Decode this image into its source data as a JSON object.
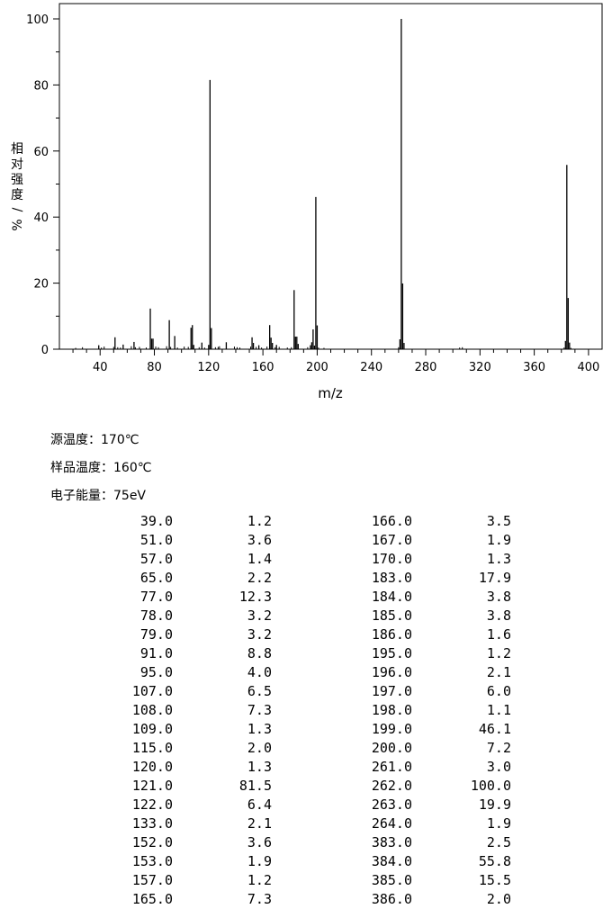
{
  "chart_data": {
    "type": "bar",
    "xlabel": "m/z",
    "ylabel": "相对强度/%",
    "xlim": [
      10,
      410
    ],
    "ylim": [
      0,
      100
    ],
    "xticks": [
      40,
      80,
      120,
      160,
      200,
      240,
      280,
      320,
      360,
      400
    ],
    "yticks": [
      0,
      20,
      40,
      60,
      80,
      100
    ],
    "peaks": [
      [
        39,
        1.2
      ],
      [
        51,
        3.6
      ],
      [
        57,
        1.4
      ],
      [
        65,
        2.2
      ],
      [
        77,
        12.3
      ],
      [
        78,
        3.2
      ],
      [
        79,
        3.2
      ],
      [
        91,
        8.8
      ],
      [
        95,
        4.0
      ],
      [
        107,
        6.5
      ],
      [
        108,
        7.3
      ],
      [
        109,
        1.3
      ],
      [
        115,
        2.0
      ],
      [
        120,
        1.3
      ],
      [
        121,
        81.5
      ],
      [
        122,
        6.4
      ],
      [
        133,
        2.1
      ],
      [
        152,
        3.6
      ],
      [
        153,
        1.9
      ],
      [
        157,
        1.2
      ],
      [
        165,
        7.3
      ],
      [
        166,
        3.5
      ],
      [
        167,
        1.9
      ],
      [
        170,
        1.3
      ],
      [
        183,
        17.9
      ],
      [
        184,
        3.8
      ],
      [
        185,
        3.8
      ],
      [
        186,
        1.6
      ],
      [
        195,
        1.2
      ],
      [
        196,
        2.1
      ],
      [
        197,
        6.0
      ],
      [
        198,
        1.1
      ],
      [
        199,
        46.1
      ],
      [
        200,
        7.2
      ],
      [
        261,
        3.0
      ],
      [
        262,
        100.0
      ],
      [
        263,
        19.9
      ],
      [
        264,
        1.9
      ],
      [
        383,
        2.5
      ],
      [
        384,
        55.8
      ],
      [
        385,
        15.5
      ],
      [
        386,
        2.0
      ]
    ],
    "minor_peaks": [
      [
        22,
        0.4
      ],
      [
        27,
        0.6
      ],
      [
        41,
        0.5
      ],
      [
        43,
        0.8
      ],
      [
        50,
        0.7
      ],
      [
        53,
        0.6
      ],
      [
        55,
        0.5
      ],
      [
        63,
        0.9
      ],
      [
        66,
        0.6
      ],
      [
        69,
        0.7
      ],
      [
        74,
        0.5
      ],
      [
        81,
        0.8
      ],
      [
        83,
        0.6
      ],
      [
        89,
        0.9
      ],
      [
        92,
        0.7
      ],
      [
        97,
        0.5
      ],
      [
        102,
        0.8
      ],
      [
        105,
        0.7
      ],
      [
        113,
        0.6
      ],
      [
        117,
        0.5
      ],
      [
        125,
        0.6
      ],
      [
        127,
        0.7
      ],
      [
        128,
        0.9
      ],
      [
        139,
        0.8
      ],
      [
        141,
        0.6
      ],
      [
        143,
        0.5
      ],
      [
        151,
        0.8
      ],
      [
        155,
        0.7
      ],
      [
        159,
        0.5
      ],
      [
        163,
        0.8
      ],
      [
        169,
        0.6
      ],
      [
        172,
        0.7
      ],
      [
        178,
        0.5
      ],
      [
        181,
        0.6
      ],
      [
        193,
        0.6
      ],
      [
        201,
        0.5
      ],
      [
        205,
        0.4
      ],
      [
        260,
        0.6
      ],
      [
        305,
        0.5
      ],
      [
        307,
        0.6
      ],
      [
        382,
        0.5
      ],
      [
        387,
        0.4
      ]
    ]
  },
  "conditions": [
    {
      "label": "源温度：",
      "value": "170℃"
    },
    {
      "label": "样品温度：",
      "value": "160℃"
    },
    {
      "label": "电子能量：",
      "value": "75eV"
    }
  ],
  "table": {
    "left": [
      [
        "39.0",
        "1.2"
      ],
      [
        "51.0",
        "3.6"
      ],
      [
        "57.0",
        "1.4"
      ],
      [
        "65.0",
        "2.2"
      ],
      [
        "77.0",
        "12.3"
      ],
      [
        "78.0",
        "3.2"
      ],
      [
        "79.0",
        "3.2"
      ],
      [
        "91.0",
        "8.8"
      ],
      [
        "95.0",
        "4.0"
      ],
      [
        "107.0",
        "6.5"
      ],
      [
        "108.0",
        "7.3"
      ],
      [
        "109.0",
        "1.3"
      ],
      [
        "115.0",
        "2.0"
      ],
      [
        "120.0",
        "1.3"
      ],
      [
        "121.0",
        "81.5"
      ],
      [
        "122.0",
        "6.4"
      ],
      [
        "133.0",
        "2.1"
      ],
      [
        "152.0",
        "3.6"
      ],
      [
        "153.0",
        "1.9"
      ],
      [
        "157.0",
        "1.2"
      ],
      [
        "165.0",
        "7.3"
      ]
    ],
    "right": [
      [
        "166.0",
        "3.5"
      ],
      [
        "167.0",
        "1.9"
      ],
      [
        "170.0",
        "1.3"
      ],
      [
        "183.0",
        "17.9"
      ],
      [
        "184.0",
        "3.8"
      ],
      [
        "185.0",
        "3.8"
      ],
      [
        "186.0",
        "1.6"
      ],
      [
        "195.0",
        "1.2"
      ],
      [
        "196.0",
        "2.1"
      ],
      [
        "197.0",
        "6.0"
      ],
      [
        "198.0",
        "1.1"
      ],
      [
        "199.0",
        "46.1"
      ],
      [
        "200.0",
        "7.2"
      ],
      [
        "261.0",
        "3.0"
      ],
      [
        "262.0",
        "100.0"
      ],
      [
        "263.0",
        "19.9"
      ],
      [
        "264.0",
        "1.9"
      ],
      [
        "383.0",
        "2.5"
      ],
      [
        "384.0",
        "55.8"
      ],
      [
        "385.0",
        "15.5"
      ],
      [
        "386.0",
        "2.0"
      ]
    ]
  }
}
